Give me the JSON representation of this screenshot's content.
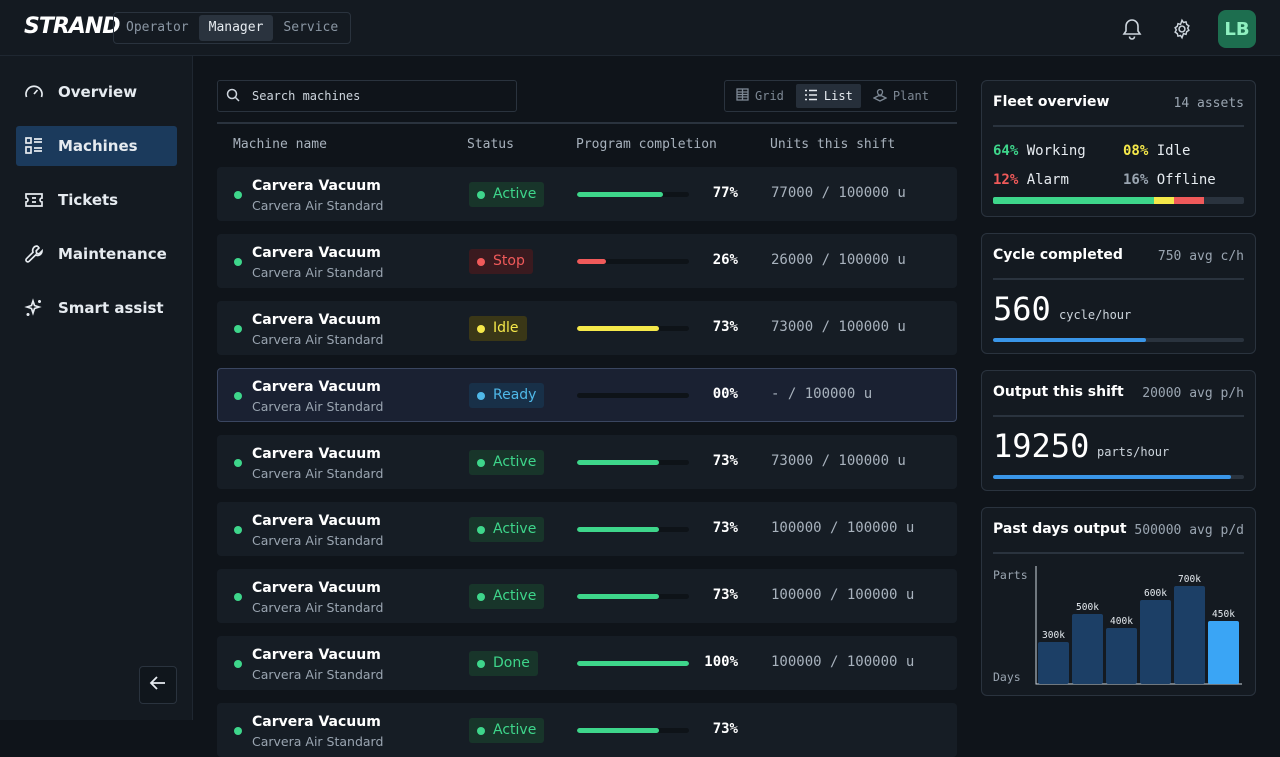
{
  "header": {
    "logo": "STRAND",
    "roles": [
      "Operator",
      "Manager",
      "Service"
    ],
    "active_role": "Manager",
    "avatar_initials": "LB"
  },
  "sidebar": {
    "items": [
      {
        "label": "Overview",
        "icon": "gauge-icon"
      },
      {
        "label": "Machines",
        "icon": "list-icon"
      },
      {
        "label": "Tickets",
        "icon": "ticket-icon"
      },
      {
        "label": "Maintenance",
        "icon": "wrench-icon"
      },
      {
        "label": "Smart assist",
        "icon": "sparkle-icon"
      }
    ],
    "active": "Machines"
  },
  "toolbar": {
    "search_placeholder": "Search machines",
    "views": [
      "Grid",
      "List",
      "Plant"
    ],
    "active_view": "List"
  },
  "table": {
    "columns": [
      "Machine name",
      "Status",
      "Program completion",
      "Units this shift"
    ],
    "rows": [
      {
        "name": "Carvera Vacuum",
        "model": "Carvera Air Standard",
        "status": "Active",
        "status_kind": "active",
        "completion": 0.77,
        "pct": "77%",
        "units": "77000 / 100000 u"
      },
      {
        "name": "Carvera Vacuum",
        "model": "Carvera Air Standard",
        "status": "Stop",
        "status_kind": "stop",
        "completion": 0.26,
        "pct": "26%",
        "units": "26000 / 100000 u"
      },
      {
        "name": "Carvera Vacuum",
        "model": "Carvera Air Standard",
        "status": "Idle",
        "status_kind": "idle",
        "completion": 0.73,
        "pct": "73%",
        "units": "73000 / 100000 u"
      },
      {
        "name": "Carvera Vacuum",
        "model": "Carvera Air Standard",
        "status": "Ready",
        "status_kind": "ready",
        "completion": 0.0,
        "pct": "00%",
        "units": "- / 100000 u"
      },
      {
        "name": "Carvera Vacuum",
        "model": "Carvera Air Standard",
        "status": "Active",
        "status_kind": "active",
        "completion": 0.73,
        "pct": "73%",
        "units": "73000 / 100000 u"
      },
      {
        "name": "Carvera Vacuum",
        "model": "Carvera Air Standard",
        "status": "Active",
        "status_kind": "active",
        "completion": 0.73,
        "pct": "73%",
        "units": "100000 / 100000 u"
      },
      {
        "name": "Carvera Vacuum",
        "model": "Carvera Air Standard",
        "status": "Active",
        "status_kind": "active",
        "completion": 0.73,
        "pct": "73%",
        "units": "100000 / 100000 u"
      },
      {
        "name": "Carvera Vacuum",
        "model": "Carvera Air Standard",
        "status": "Done",
        "status_kind": "done",
        "completion": 1.0,
        "pct": "100%",
        "units": "100000 / 100000 u"
      },
      {
        "name": "Carvera Vacuum",
        "model": "Carvera Air Standard",
        "status": "Active",
        "status_kind": "active",
        "completion": 0.73,
        "pct": "73%",
        "units": ""
      }
    ]
  },
  "colors": {
    "active": "#3ed68b",
    "stop": "#f05a5a",
    "idle": "#f5e84a",
    "ready": "#4fb8e8",
    "done": "#3ed68b",
    "offline": "#2a333e",
    "accent": "#3a96e8"
  },
  "fleet": {
    "title": "Fleet overview",
    "assets": "14 assets",
    "stats": [
      {
        "pct": "64%",
        "label": "Working",
        "value": 0.64,
        "color": "#3ed68b"
      },
      {
        "pct": "08%",
        "label": "Idle",
        "value": 0.08,
        "color": "#f5e84a"
      },
      {
        "pct": "12%",
        "label": "Alarm",
        "value": 0.12,
        "color": "#f05a5a"
      },
      {
        "pct": "16%",
        "label": "Offline",
        "value": 0.16,
        "color": "#9aa5b1"
      }
    ]
  },
  "cycle": {
    "title": "Cycle completed",
    "meta": "750 avg c/h",
    "value": "560",
    "unit": "cycle/hour",
    "progress": 0.61
  },
  "output": {
    "title": "Output this shift",
    "meta": "20000 avg p/h",
    "value": "19250",
    "unit": "parts/hour",
    "progress": 0.95
  },
  "past_output": {
    "title": "Past days output",
    "meta": "500000 avg p/d"
  },
  "chart_data": {
    "type": "bar",
    "title": "Past days output",
    "ylabel": "Parts",
    "xlabel": "Days",
    "values": [
      300000,
      500000,
      400000,
      600000,
      700000,
      450000
    ],
    "labels": [
      "300k",
      "500k",
      "400k",
      "600k",
      "700k",
      "450k"
    ],
    "ylim": [
      0,
      800000
    ],
    "highlight_last": true
  }
}
